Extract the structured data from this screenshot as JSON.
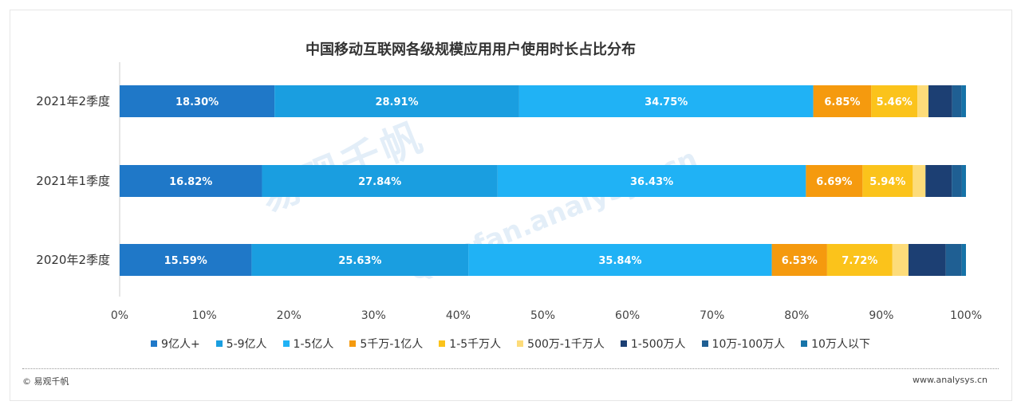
{
  "title": "中国移动互联网各级规模应用用户使用时长占比分布",
  "footer": {
    "left": "© 易观千帆",
    "right": "www.analysys.cn"
  },
  "watermark": {
    "cn": "易观千帆",
    "en": "Qianfan.analysys.cn"
  },
  "chart_data": {
    "type": "bar",
    "orientation": "horizontal",
    "stacked": "percent",
    "categories": [
      "2021年2季度",
      "2021年1季度",
      "2020年2季度"
    ],
    "x_ticks": [
      "0%",
      "10%",
      "20%",
      "30%",
      "40%",
      "50%",
      "60%",
      "70%",
      "80%",
      "90%",
      "100%"
    ],
    "xlim": [
      0,
      100
    ],
    "legend_position": "bottom",
    "series": [
      {
        "name": "9亿人+",
        "color": "#1f78c8",
        "values": [
          18.3,
          16.82,
          15.59
        ],
        "labels": [
          "18.30%",
          "16.82%",
          "15.59%"
        ]
      },
      {
        "name": "5-9亿人",
        "color": "#1a9ee0",
        "values": [
          28.91,
          27.84,
          25.63
        ],
        "labels": [
          "28.91%",
          "27.84%",
          "25.63%"
        ]
      },
      {
        "name": "1-5亿人",
        "color": "#20b2f5",
        "values": [
          34.75,
          36.43,
          35.84
        ],
        "labels": [
          "34.75%",
          "36.43%",
          "35.84%"
        ]
      },
      {
        "name": "5千万-1亿人",
        "color": "#f59a0e",
        "values": [
          6.85,
          6.69,
          6.53
        ],
        "labels": [
          "6.85%",
          "6.69%",
          "6.53%"
        ]
      },
      {
        "name": "1-5千万人",
        "color": "#fbc31b",
        "values": [
          5.46,
          5.94,
          7.72
        ],
        "labels": [
          "5.46%",
          "5.94%",
          "7.72%"
        ]
      },
      {
        "name": "500万-1千万人",
        "color": "#fddc7a",
        "values": [
          1.3,
          1.5,
          1.9
        ],
        "labels": [
          "",
          "",
          ""
        ]
      },
      {
        "name": "1-500万人",
        "color": "#1c3f73",
        "values": [
          2.8,
          3.1,
          4.4
        ],
        "labels": [
          "",
          "",
          ""
        ]
      },
      {
        "name": "10万-100万人",
        "color": "#1f5f93",
        "values": [
          1.1,
          1.2,
          1.9
        ],
        "labels": [
          "",
          "",
          ""
        ]
      },
      {
        "name": "10万人以下",
        "color": "#1673a8",
        "values": [
          0.53,
          0.48,
          0.49
        ],
        "labels": [
          "",
          "",
          ""
        ]
      }
    ]
  }
}
